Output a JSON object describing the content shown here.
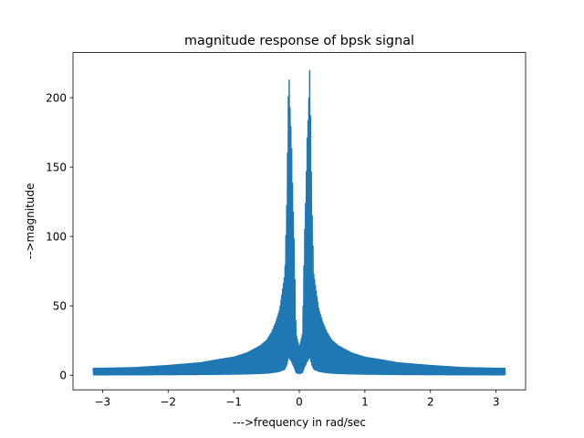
{
  "chart_data": {
    "type": "line",
    "title": "magnitude response of bpsk signal",
    "xlabel": "--->frequency in rad/sec",
    "ylabel": "-->magnitude",
    "xlim": [
      -3.45,
      3.45
    ],
    "ylim": [
      -10.5,
      232.5
    ],
    "xticks": [
      -3,
      -2,
      -1,
      0,
      1,
      2,
      3
    ],
    "xtick_labels": [
      "−3",
      "−2",
      "−1",
      "0",
      "1",
      "2",
      "3"
    ],
    "yticks": [
      0,
      50,
      100,
      150,
      200
    ],
    "ytick_labels": [
      "0",
      "50",
      "100",
      "150",
      "200"
    ],
    "grid": false,
    "legend": "none",
    "series": [
      {
        "color": "#1f77b4",
        "note_x_domain": [
          -3.1416,
          3.1416
        ],
        "x": [
          -3.1416,
          -3.0,
          -2.5,
          -2.0,
          -1.5,
          -1.2,
          -1.0,
          -0.8,
          -0.6,
          -0.5,
          -0.42,
          -0.36,
          -0.3,
          -0.26,
          -0.22,
          -0.19,
          -0.16,
          -0.14,
          -0.12,
          -0.1,
          -0.08,
          -0.05,
          0.0,
          0.05,
          0.08,
          0.1,
          0.12,
          0.14,
          0.16,
          0.19,
          0.22,
          0.26,
          0.3,
          0.36,
          0.42,
          0.5,
          0.6,
          0.8,
          1.0,
          1.2,
          1.5,
          2.0,
          2.5,
          3.0,
          3.1416
        ],
        "y": [
          5,
          5,
          5.5,
          7,
          9,
          11.5,
          13,
          16,
          21,
          25,
          31,
          38,
          47,
          60,
          73,
          125,
          222,
          190,
          170,
          130,
          100,
          30,
          20,
          30,
          100,
          130,
          170,
          190,
          222,
          125,
          73,
          60,
          47,
          38,
          31,
          25,
          21,
          16,
          13,
          11.5,
          9,
          7,
          5.5,
          5,
          5
        ]
      }
    ]
  }
}
